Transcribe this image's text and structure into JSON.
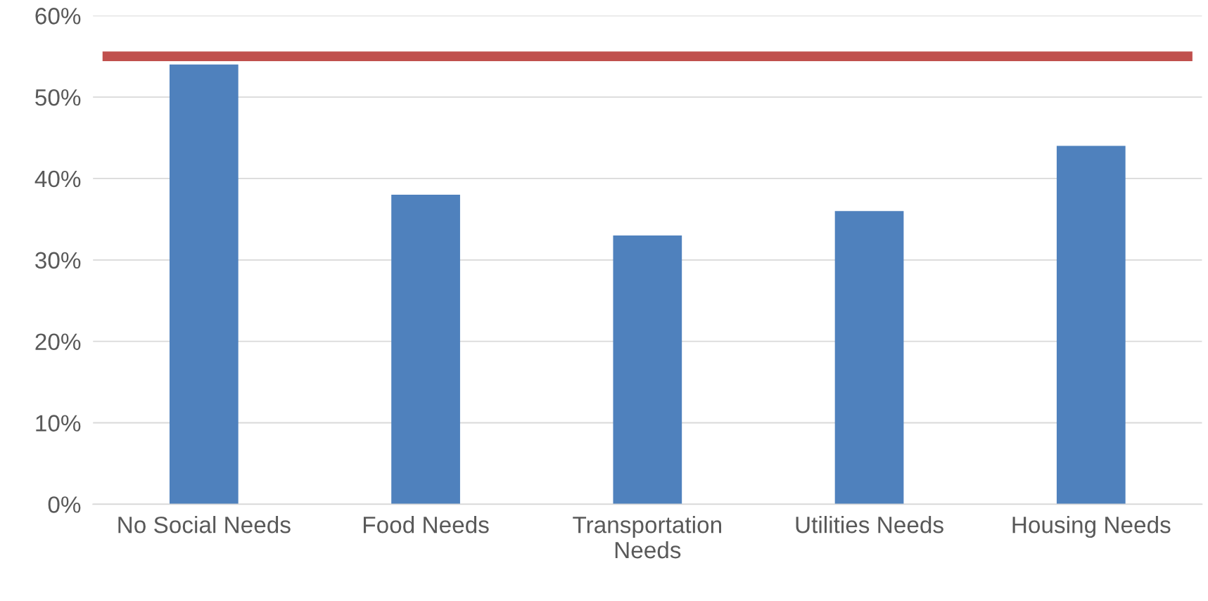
{
  "chart_data": {
    "type": "bar",
    "categories": [
      "No Social Needs",
      "Food Needs",
      "Transportation\nNeeds",
      "Utilities Needs",
      "Housing Needs"
    ],
    "values": [
      54,
      38,
      33,
      36,
      44
    ],
    "color": "#4f81bd",
    "ylim": [
      0,
      60
    ],
    "yticks": [
      {
        "value": 0,
        "label": "0%"
      },
      {
        "value": 10,
        "label": "10%"
      },
      {
        "value": 20,
        "label": "20%"
      },
      {
        "value": 30,
        "label": "30%"
      },
      {
        "value": 40,
        "label": "40%"
      },
      {
        "value": 50,
        "label": "50%"
      },
      {
        "value": 60,
        "label": "60%"
      }
    ],
    "grid": "y",
    "ref_lines": [
      {
        "axis": "y",
        "value": 55,
        "color": "#c0504d"
      }
    ]
  }
}
